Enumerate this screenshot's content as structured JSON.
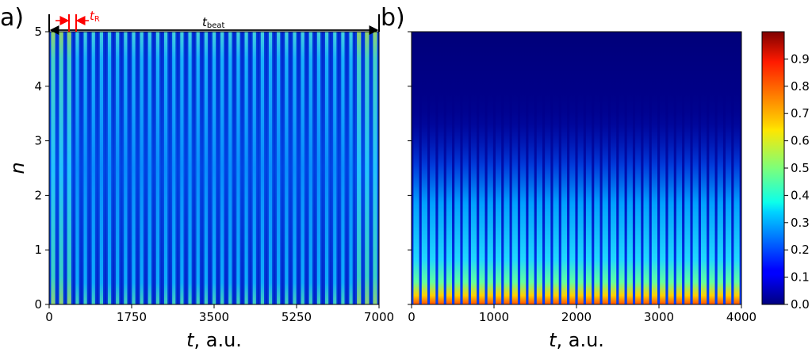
{
  "chart_data": [
    {
      "type": "heatmap",
      "panel_label": "a)",
      "xlabel_var": "t",
      "xlabel_unit": ", a.u.",
      "ylabel": "n",
      "xlim": [
        0,
        7000
      ],
      "ylim": [
        0,
        5
      ],
      "x_ticks": [
        "0",
        "1750",
        "3500",
        "5250",
        "7000"
      ],
      "y_ticks": [
        "0",
        "1",
        "2",
        "3",
        "4",
        "5"
      ],
      "stripe_count": 40,
      "annotations": {
        "revival_label": "t",
        "revival_sub": "R",
        "revival_color": "#ff0000",
        "beat_label": "t",
        "beat_sub": "beat",
        "beat_color": "#000000"
      }
    },
    {
      "type": "heatmap",
      "panel_label": "b)",
      "xlabel_var": "t",
      "xlabel_unit": ", a.u.",
      "xlim": [
        0,
        4000
      ],
      "ylim": [
        0,
        5
      ],
      "x_ticks": [
        "0",
        "1000",
        "2000",
        "3000",
        "4000"
      ],
      "stripe_count": 40,
      "colorbar": {
        "range": [
          0.0,
          1.0
        ],
        "ticks": [
          "0.0",
          "0.1",
          "0.2",
          "0.3",
          "0.4",
          "0.5",
          "0.6",
          "0.7",
          "0.8",
          "0.9"
        ],
        "colormap": "jet"
      }
    }
  ]
}
